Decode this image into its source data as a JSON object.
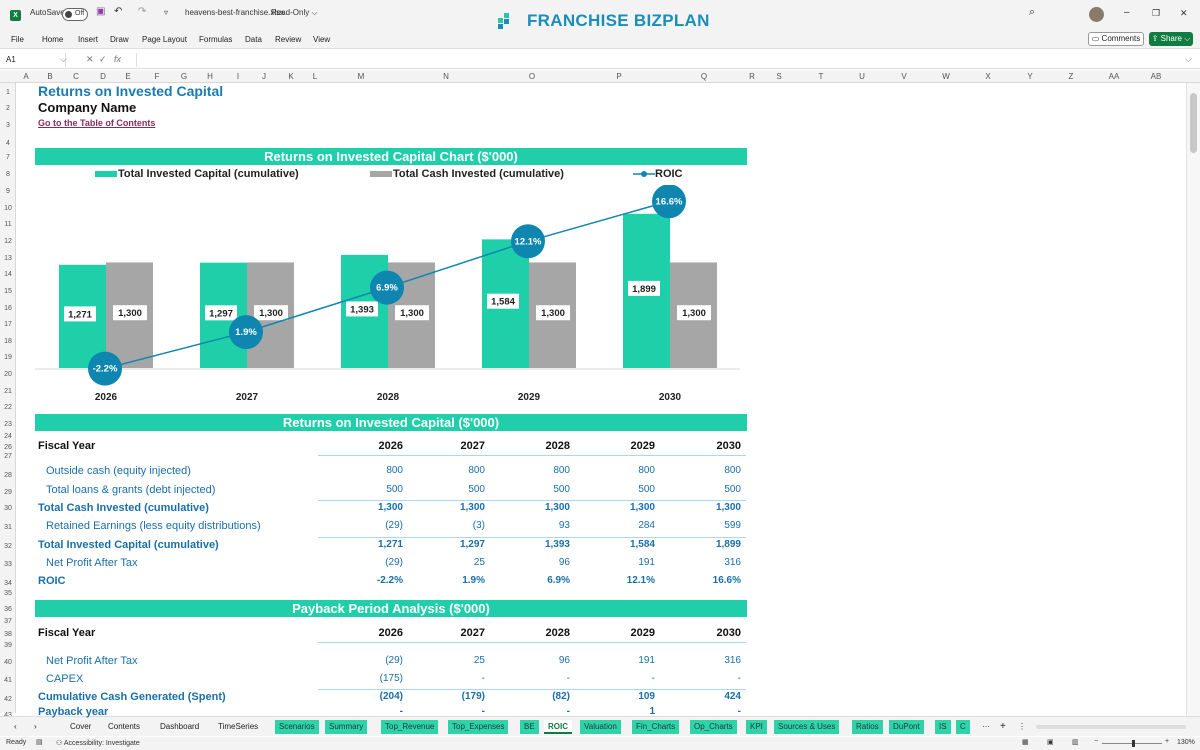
{
  "titlebar": {
    "autosave_label": "AutoSave",
    "autosave_state": "Off",
    "filename": "heavens-best-franchise.xlsx",
    "mode": "Read-Only ⌵",
    "brand_left": "FRANCHISE",
    "brand_right": "BIZPLAN",
    "window_minimize": "–",
    "window_restore": "❐",
    "window_close": "✕"
  },
  "ribbon": {
    "tabs": [
      "File",
      "Home",
      "Insert",
      "Draw",
      "Page Layout",
      "Formulas",
      "Data",
      "Review",
      "View"
    ],
    "comments_label": "Comments",
    "share_label": "Share ⌵"
  },
  "formula_bar": {
    "cell_ref": "A1",
    "fx_label": "fx"
  },
  "columns": [
    "A",
    "B",
    "C",
    "D",
    "E",
    "F",
    "G",
    "H",
    "I",
    "J",
    "K",
    "L",
    "M",
    "N",
    "O",
    "P",
    "Q",
    "R",
    "S",
    "T",
    "U",
    "V",
    "W",
    "X",
    "Y",
    "Z",
    "AA",
    "AB"
  ],
  "rows": [
    "1",
    "2",
    "3",
    "4",
    "7",
    "8",
    "9",
    "10",
    "11",
    "12",
    "13",
    "14",
    "15",
    "16",
    "17",
    "18",
    "19",
    "20",
    "21",
    "22",
    "23",
    "24",
    "26",
    "27",
    "28",
    "29",
    "30",
    "31",
    "32",
    "33",
    "34",
    "35",
    "36",
    "37",
    "38",
    "39",
    "40",
    "41",
    "42",
    "43"
  ],
  "sheet": {
    "title": "Returns on Invested Capital",
    "company": "Company Name",
    "toc_link": "Go to the Table of Contents"
  },
  "chart_data": {
    "type": "bar",
    "title": "Returns on Invested Capital Chart ($'000)",
    "categories": [
      "2026",
      "2027",
      "2028",
      "2029",
      "2030"
    ],
    "series": [
      {
        "name": "Total Invested Capital (cumulative)",
        "type": "bar",
        "color": "#1fcfaa",
        "values": [
          1271,
          1297,
          1393,
          1584,
          1899
        ],
        "labels": [
          "1,271",
          "1,297",
          "1,393",
          "1,584",
          "1,899"
        ]
      },
      {
        "name": "Total Cash Invested (cumulative)",
        "type": "bar",
        "color": "#a6a6a6",
        "values": [
          1300,
          1300,
          1300,
          1300,
          1300
        ],
        "labels": [
          "1,300",
          "1,300",
          "1,300",
          "1,300",
          "1,300"
        ]
      },
      {
        "name": "ROIC",
        "type": "line",
        "color": "#0e86b0",
        "values": [
          -2.2,
          1.9,
          6.9,
          12.1,
          16.6
        ],
        "labels": [
          "-2.2%",
          "1.9%",
          "6.9%",
          "12.1%",
          "16.6%"
        ]
      }
    ],
    "legend_position": "top",
    "grid": false
  },
  "roic_table": {
    "banner": "Returns on Invested Capital ($'000)",
    "header": "Fiscal Year",
    "years": [
      "2026",
      "2027",
      "2028",
      "2029",
      "2030"
    ],
    "rows": [
      {
        "label": "Outside cash (equity injected)",
        "values": [
          "800",
          "800",
          "800",
          "800",
          "800"
        ]
      },
      {
        "label": "Total loans & grants (debt injected)",
        "values": [
          "500",
          "500",
          "500",
          "500",
          "500"
        ]
      },
      {
        "label": "Total Cash Invested (cumulative)",
        "values": [
          "1,300",
          "1,300",
          "1,300",
          "1,300",
          "1,300"
        ]
      },
      {
        "label": "Retained Earnings (less equity distributions)",
        "values": [
          "(29)",
          "(3)",
          "93",
          "284",
          "599"
        ]
      },
      {
        "label": "Total Invested Capital (cumulative)",
        "values": [
          "1,271",
          "1,297",
          "1,393",
          "1,584",
          "1,899"
        ]
      },
      {
        "label": "Net Profit After Tax",
        "values": [
          "(29)",
          "25",
          "96",
          "191",
          "316"
        ]
      },
      {
        "label": "ROIC",
        "values": [
          "-2.2%",
          "1.9%",
          "6.9%",
          "12.1%",
          "16.6%"
        ]
      }
    ]
  },
  "payback_table": {
    "banner": "Payback Period Analysis ($'000)",
    "header": "Fiscal Year",
    "years": [
      "2026",
      "2027",
      "2028",
      "2029",
      "2030"
    ],
    "rows": [
      {
        "label": "Net Profit After Tax",
        "values": [
          "(29)",
          "25",
          "96",
          "191",
          "316"
        ]
      },
      {
        "label": "CAPEX",
        "values": [
          "(175)",
          "-",
          "-",
          "-",
          "-"
        ]
      },
      {
        "label": "Cumulative Cash Generated (Spent)",
        "values": [
          "(204)",
          "(179)",
          "(82)",
          "109",
          "424"
        ]
      },
      {
        "label": "Payback year",
        "values": [
          "-",
          "-",
          "-",
          "1",
          "-"
        ]
      }
    ]
  },
  "sheet_tabs": [
    {
      "label": "Cover",
      "style": "plain"
    },
    {
      "label": "Contents",
      "style": "plain"
    },
    {
      "label": "Dashboard",
      "style": "plain"
    },
    {
      "label": "TimeSeries",
      "style": "plain"
    },
    {
      "label": "Scenarios",
      "style": "green"
    },
    {
      "label": "Summary",
      "style": "green"
    },
    {
      "label": "Top_Revenue",
      "style": "green"
    },
    {
      "label": "Top_Expenses",
      "style": "green"
    },
    {
      "label": "BE",
      "style": "green"
    },
    {
      "label": "ROIC",
      "style": "active"
    },
    {
      "label": "Valuation",
      "style": "green"
    },
    {
      "label": "Fin_Charts",
      "style": "green"
    },
    {
      "label": "Op_Charts",
      "style": "green"
    },
    {
      "label": "KPI",
      "style": "green"
    },
    {
      "label": "Sources & Uses",
      "style": "green"
    },
    {
      "label": "Ratios",
      "style": "green"
    },
    {
      "label": "DuPont",
      "style": "green"
    },
    {
      "label": "IS",
      "style": "green"
    },
    {
      "label": "C",
      "style": "green"
    }
  ],
  "status": {
    "ready": "Ready",
    "accessibility": "Accessibility: Investigate",
    "zoom": "130%"
  }
}
